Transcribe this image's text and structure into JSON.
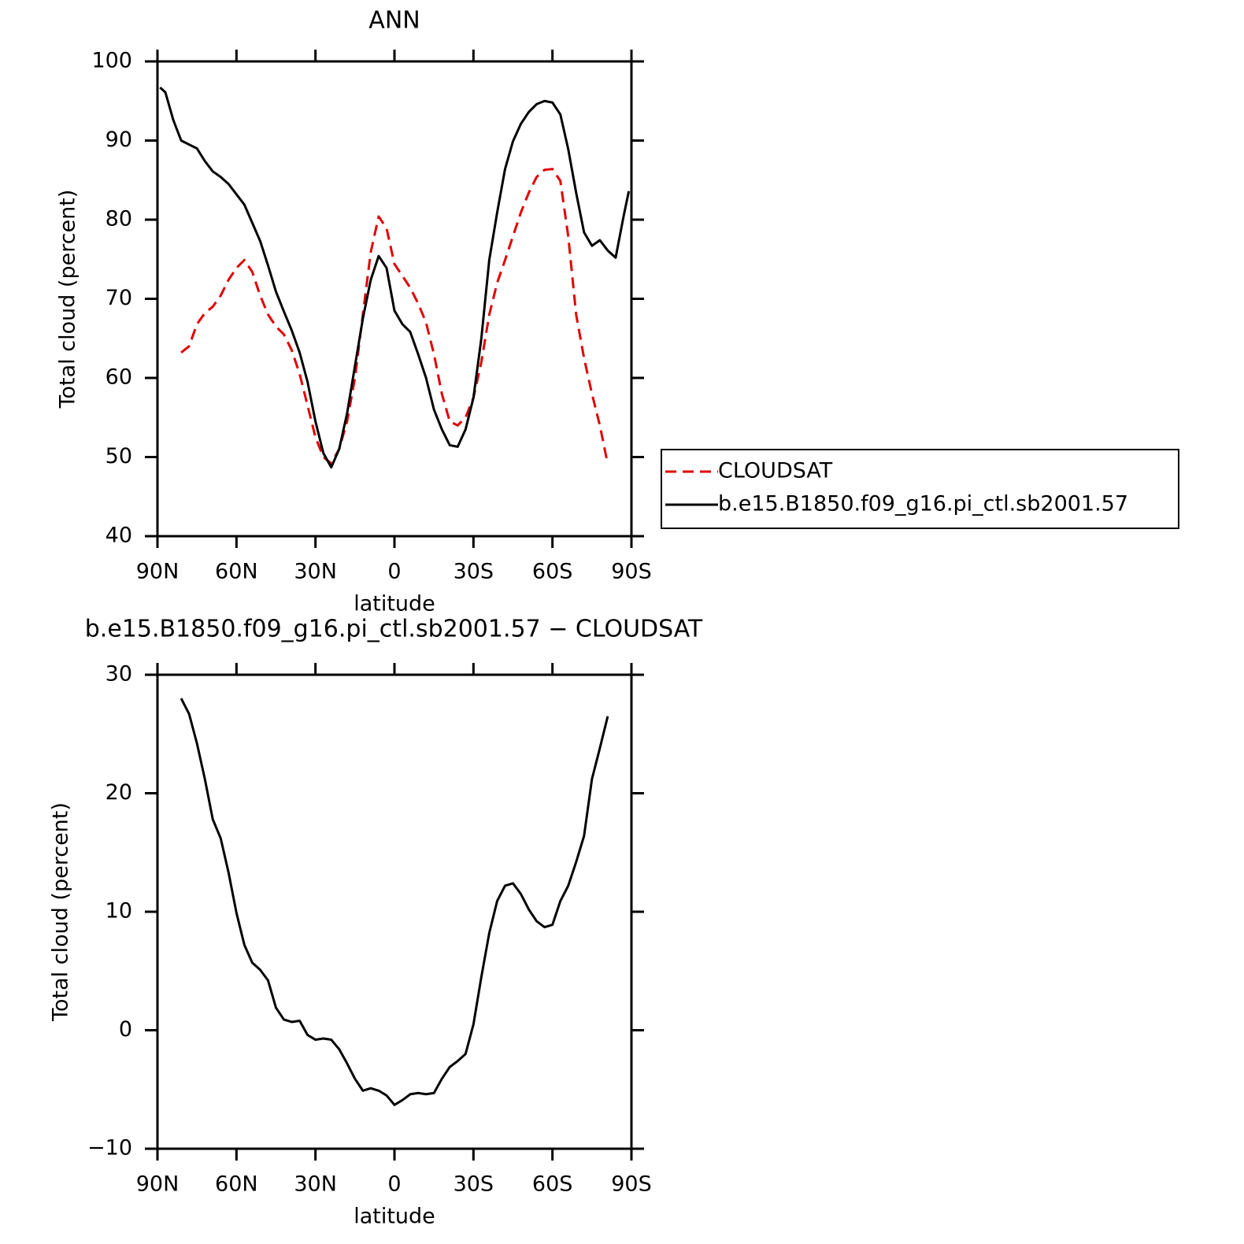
{
  "chart_data": [
    {
      "type": "line",
      "title": "ANN",
      "xlabel": "latitude",
      "ylabel": "Total cloud (percent)",
      "xlim": [
        90,
        -90
      ],
      "xticks": [
        {
          "value": 90,
          "label": "90N"
        },
        {
          "value": 60,
          "label": "60N"
        },
        {
          "value": 30,
          "label": "30N"
        },
        0,
        {
          "value": -30,
          "label": "30S"
        },
        {
          "value": -60,
          "label": "60S"
        },
        {
          "value": -90,
          "label": "90S"
        }
      ],
      "ylim": [
        40,
        100
      ],
      "yticks": [
        40,
        50,
        60,
        70,
        80,
        90,
        100
      ],
      "legend": "right",
      "x": [
        89,
        87,
        84,
        81,
        78,
        75,
        72,
        69,
        66,
        63,
        60,
        57,
        54,
        51,
        48,
        45,
        42,
        39,
        36,
        33,
        30,
        27,
        24,
        21,
        18,
        15,
        12,
        9,
        6,
        3,
        0,
        -3,
        -6,
        -9,
        -12,
        -15,
        -18,
        -21,
        -24,
        -27,
        -30,
        -33,
        -36,
        -39,
        -42,
        -45,
        -48,
        -51,
        -54,
        -57,
        -60,
        -63,
        -66,
        -69,
        -72,
        -75,
        -78,
        -81,
        -84,
        -87,
        -89
      ],
      "series": [
        {
          "name": "CLOUDSAT",
          "color": "#e00000",
          "line_style": "dashed",
          "values": [
            null,
            null,
            null,
            63.2,
            64.0,
            66.8,
            68.2,
            69.0,
            70.4,
            72.4,
            73.9,
            74.9,
            73.4,
            70.4,
            68.0,
            66.5,
            65.5,
            63.5,
            60.5,
            56.5,
            52.5,
            50.0,
            49.2,
            51.0,
            54.5,
            60.0,
            68.0,
            75.9,
            80.4,
            78.9,
            74.4,
            72.9,
            71.4,
            69.4,
            67.0,
            63.0,
            58.0,
            54.5,
            54.0,
            55.0,
            57.5,
            62.0,
            68.0,
            72.0,
            74.9,
            77.9,
            80.9,
            83.4,
            85.4,
            86.3,
            86.4,
            84.9,
            77.9,
            68.0,
            62.5,
            58.0,
            54.0,
            49.1,
            null,
            null,
            null
          ]
        },
        {
          "name": "b.e15.B1850.f09_g16.pi_ctl.sb2001.57",
          "color": "#000000",
          "line_style": "solid",
          "values": [
            96.7,
            96.1,
            92.6,
            90.0,
            89.5,
            89.0,
            87.4,
            86.1,
            85.4,
            84.5,
            83.2,
            81.9,
            79.6,
            77.3,
            74.2,
            70.9,
            68.4,
            66.0,
            63.2,
            59.5,
            54.5,
            50.5,
            48.7,
            51.0,
            55.5,
            61.5,
            67.5,
            72.4,
            75.4,
            73.9,
            68.5,
            66.8,
            65.8,
            63.0,
            60.0,
            56.0,
            53.5,
            51.5,
            51.3,
            53.5,
            57.5,
            65.0,
            74.9,
            80.9,
            86.4,
            89.9,
            92.1,
            93.6,
            94.6,
            95.0,
            94.8,
            93.3,
            88.9,
            83.4,
            78.4,
            76.7,
            77.4,
            76.1,
            75.2,
            80.4,
            83.6
          ]
        }
      ]
    },
    {
      "type": "line",
      "title": "b.e15.B1850.f09_g16.pi_ctl.sb2001.57 − CLOUDSAT",
      "xlabel": "latitude",
      "ylabel": "Total cloud (percent)",
      "xlim": [
        90,
        -90
      ],
      "xticks": [
        {
          "value": 90,
          "label": "90N"
        },
        {
          "value": 60,
          "label": "60N"
        },
        {
          "value": 30,
          "label": "30N"
        },
        0,
        {
          "value": -30,
          "label": "30S"
        },
        {
          "value": -60,
          "label": "60S"
        },
        {
          "value": -90,
          "label": "90S"
        }
      ],
      "ylim": [
        -10,
        30
      ],
      "yticks": [
        {
          "value": -10,
          "label": "−10"
        },
        0,
        10,
        20,
        30
      ],
      "x": [
        81,
        78,
        75,
        72,
        69,
        66,
        63,
        60,
        57,
        54,
        51,
        48,
        45,
        42,
        39,
        36,
        33,
        30,
        27,
        24,
        21,
        18,
        15,
        12,
        9,
        6,
        3,
        0,
        -3,
        -6,
        -9,
        -12,
        -15,
        -18,
        -21,
        -24,
        -27,
        -30,
        -33,
        -36,
        -39,
        -42,
        -45,
        -48,
        -51,
        -54,
        -57,
        -60,
        -63,
        -66,
        -69,
        -72,
        -75,
        -78,
        -81
      ],
      "series": [
        {
          "color": "#000000",
          "line_style": "solid",
          "values": [
            28.0,
            26.7,
            24.2,
            21.2,
            17.8,
            16.2,
            13.3,
            9.9,
            7.2,
            5.7,
            5.1,
            4.2,
            1.9,
            0.9,
            0.7,
            0.8,
            -0.4,
            -0.8,
            -0.7,
            -0.8,
            -1.6,
            -2.8,
            -4.1,
            -5.1,
            -4.9,
            -5.1,
            -5.5,
            -6.3,
            -5.9,
            -5.4,
            -5.3,
            -5.4,
            -5.3,
            -4.1,
            -3.1,
            -2.6,
            -2.0,
            0.5,
            4.5,
            8.2,
            10.9,
            12.2,
            12.4,
            11.5,
            10.2,
            9.2,
            8.7,
            8.9,
            10.9,
            12.2,
            14.2,
            16.4,
            21.2,
            23.8,
            26.5
          ]
        }
      ]
    }
  ]
}
